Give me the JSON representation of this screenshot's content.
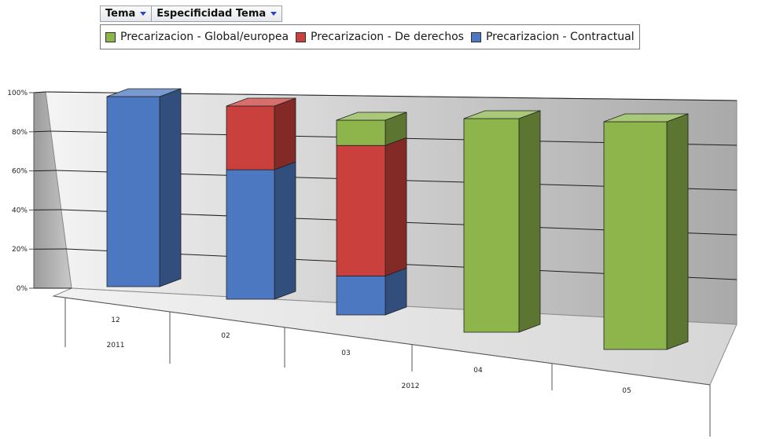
{
  "filters": {
    "tema_label": "Tema",
    "especificidad_label": "Especificidad Tema"
  },
  "colors": {
    "global": "#8db54c",
    "derechos": "#c9403c",
    "contractual": "#4b78c0"
  },
  "chart_data": {
    "type": "bar",
    "stacked": true,
    "percent": true,
    "three_d": true,
    "categories": [
      "12",
      "02",
      "03",
      "04",
      "05"
    ],
    "groups": [
      {
        "label": "2011",
        "categories": [
          "12"
        ]
      },
      {
        "label": "2012",
        "categories": [
          "02",
          "03",
          "04",
          "05"
        ]
      }
    ],
    "series": [
      {
        "name": "Precarizacion - Contractual",
        "key": "contractual",
        "values": [
          100,
          67,
          20,
          0,
          0
        ]
      },
      {
        "name": "Precarizacion - De derechos",
        "key": "derechos",
        "values": [
          0,
          33,
          67,
          0,
          0
        ]
      },
      {
        "name": "Precarizacion - Global/europea",
        "key": "global",
        "values": [
          0,
          0,
          13,
          100,
          100
        ]
      }
    ],
    "y_ticks": [
      "0%",
      "20%",
      "40%",
      "60%",
      "80%",
      "100%"
    ],
    "ylim": [
      0,
      100
    ],
    "grid": true,
    "legend": "top"
  }
}
